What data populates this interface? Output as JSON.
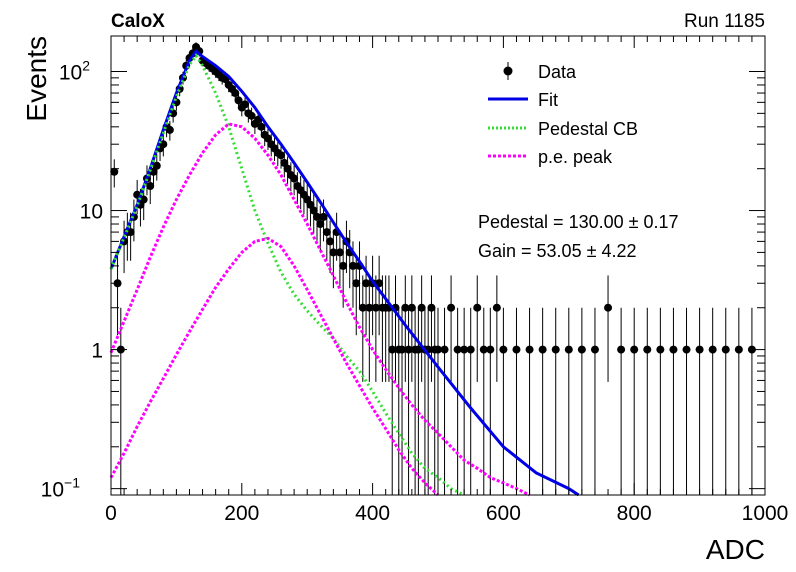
{
  "header": {
    "title": "CaloX",
    "run_label": "Run 1185"
  },
  "annotations": {
    "pedestal": "Pedestal = 130.00 ± 0.17",
    "gain": "Gain = 53.05 ± 4.22"
  },
  "colors": {
    "data": "#000000",
    "fit": "#0000e6",
    "pedestal": "#33dd33",
    "pe_peak": "#ff00ff"
  },
  "chart_data": {
    "type": "scatter",
    "xlabel": "ADC",
    "ylabel": "Events",
    "xlim": [
      0,
      1000
    ],
    "ylim": [
      0.09,
      180
    ],
    "yscale": "log",
    "grid": false,
    "legend_position": "top-right",
    "x_ticks": [
      "0",
      "200",
      "400",
      "600",
      "800",
      "1000"
    ],
    "y_ticks": [
      {
        "value": 0.1,
        "label": "10",
        "sup": "−1"
      },
      {
        "value": 1,
        "label": "1",
        "sup": ""
      },
      {
        "value": 10,
        "label": "10",
        "sup": ""
      },
      {
        "value": 100,
        "label": "10",
        "sup": "2"
      }
    ],
    "legend": [
      {
        "key": "data",
        "label": "Data"
      },
      {
        "key": "fit",
        "label": "Fit"
      },
      {
        "key": "pedestal",
        "label": "Pedestal CB"
      },
      {
        "key": "pe_peak",
        "label": "p.e. peak"
      }
    ],
    "series": [
      {
        "key": "data",
        "name": "Data",
        "style": "points",
        "x": [
          5,
          10,
          15,
          20,
          25,
          30,
          35,
          40,
          45,
          50,
          55,
          60,
          65,
          70,
          75,
          80,
          85,
          90,
          95,
          100,
          105,
          110,
          115,
          120,
          125,
          130,
          135,
          140,
          145,
          150,
          155,
          160,
          165,
          170,
          175,
          180,
          185,
          190,
          195,
          200,
          205,
          210,
          215,
          220,
          225,
          230,
          235,
          240,
          245,
          250,
          255,
          260,
          265,
          270,
          275,
          280,
          285,
          290,
          295,
          300,
          305,
          310,
          315,
          320,
          325,
          330,
          335,
          340,
          345,
          350,
          355,
          360,
          365,
          370,
          375,
          380,
          385,
          390,
          395,
          400,
          405,
          410,
          415,
          420,
          425,
          430,
          435,
          440,
          445,
          450,
          455,
          460,
          465,
          470,
          475,
          480,
          485,
          490,
          495,
          500,
          510,
          520,
          530,
          540,
          550,
          560,
          570,
          580,
          590,
          600,
          620,
          640,
          660,
          680,
          700,
          720,
          740,
          760,
          780,
          800,
          820,
          840,
          860,
          880,
          900,
          920,
          940,
          960,
          980
        ],
        "y": [
          19,
          3,
          1,
          6,
          7,
          7,
          9,
          13,
          11,
          12,
          17,
          15,
          19,
          21,
          28,
          30,
          40,
          38,
          50,
          60,
          75,
          90,
          110,
          125,
          135,
          150,
          140,
          120,
          115,
          110,
          105,
          100,
          95,
          90,
          88,
          80,
          75,
          70,
          62,
          55,
          58,
          50,
          48,
          42,
          45,
          40,
          35,
          33,
          30,
          28,
          26,
          25,
          22,
          20,
          18,
          17,
          15,
          14,
          13,
          12,
          11,
          10,
          9,
          8,
          9,
          7,
          6,
          5,
          7,
          5,
          4,
          6,
          5,
          4,
          3,
          4,
          2,
          3,
          2,
          3,
          2,
          3,
          2,
          2,
          2,
          1,
          2,
          1,
          1,
          2,
          1,
          2,
          1,
          1,
          2,
          1,
          1,
          2,
          1,
          1,
          1,
          2,
          1,
          1,
          1,
          2,
          1,
          1,
          2,
          1,
          1,
          1,
          1,
          1,
          1,
          1,
          1,
          2,
          1,
          1,
          1,
          1,
          1,
          1,
          1,
          1,
          1,
          1,
          1
        ]
      },
      {
        "key": "fit",
        "name": "Fit",
        "style": "line",
        "x": [
          0,
          20,
          40,
          60,
          80,
          100,
          120,
          130,
          140,
          160,
          180,
          200,
          220,
          240,
          260,
          280,
          300,
          320,
          340,
          360,
          380,
          400,
          450,
          500,
          550,
          600,
          650,
          700,
          715
        ],
        "y": [
          3.8,
          6.5,
          11,
          20,
          38,
          70,
          120,
          140,
          128,
          110,
          92,
          72,
          55,
          40,
          30,
          22,
          16,
          11.5,
          8.2,
          5.9,
          4.3,
          3.1,
          1.5,
          0.75,
          0.38,
          0.2,
          0.13,
          0.1,
          0.09
        ]
      },
      {
        "key": "pedestal",
        "name": "Pedestal CB",
        "style": "dotted",
        "x": [
          0,
          20,
          40,
          60,
          80,
          100,
          120,
          130,
          140,
          160,
          180,
          200,
          220,
          240,
          260,
          280,
          300,
          320,
          340,
          360,
          380,
          400,
          420,
          440,
          460,
          480,
          500,
          520,
          540
        ],
        "y": [
          3.8,
          6.4,
          10.8,
          19.5,
          36,
          66,
          112,
          130,
          110,
          70,
          40,
          20,
          10,
          5.8,
          3.6,
          2.5,
          1.9,
          1.5,
          1.2,
          0.9,
          0.7,
          0.5,
          0.35,
          0.25,
          0.18,
          0.14,
          0.12,
          0.1,
          0.09
        ]
      },
      {
        "key": "pe_peak",
        "name": "p.e. peak",
        "style": "dotted",
        "x": [
          0,
          20,
          40,
          60,
          80,
          100,
          120,
          140,
          160,
          180,
          200,
          220,
          240,
          260,
          280,
          300,
          320,
          340,
          360,
          380,
          400,
          420,
          440,
          460,
          480,
          500,
          520,
          540,
          560,
          580,
          600,
          620,
          640
        ],
        "y": [
          0.95,
          1.6,
          2.7,
          4.6,
          7.6,
          12,
          18,
          26,
          35,
          42,
          40,
          33,
          25,
          18,
          12,
          8,
          5.2,
          3.4,
          2.2,
          1.45,
          1,
          0.72,
          0.53,
          0.4,
          0.31,
          0.25,
          0.2,
          0.16,
          0.14,
          0.12,
          0.11,
          0.1,
          0.09
        ]
      },
      {
        "key": "pe_peak2",
        "style": "dotted",
        "x": [
          0,
          20,
          40,
          60,
          80,
          100,
          120,
          140,
          160,
          180,
          200,
          220,
          240,
          260,
          280,
          300,
          320,
          340,
          360,
          380,
          400,
          420,
          440,
          460,
          480,
          500
        ],
        "y": [
          0.12,
          0.18,
          0.28,
          0.42,
          0.62,
          0.92,
          1.35,
          1.95,
          2.8,
          3.8,
          5,
          6,
          6.3,
          5.5,
          4,
          2.7,
          1.8,
          1.2,
          0.8,
          0.55,
          0.38,
          0.27,
          0.19,
          0.14,
          0.11,
          0.09
        ]
      }
    ]
  }
}
